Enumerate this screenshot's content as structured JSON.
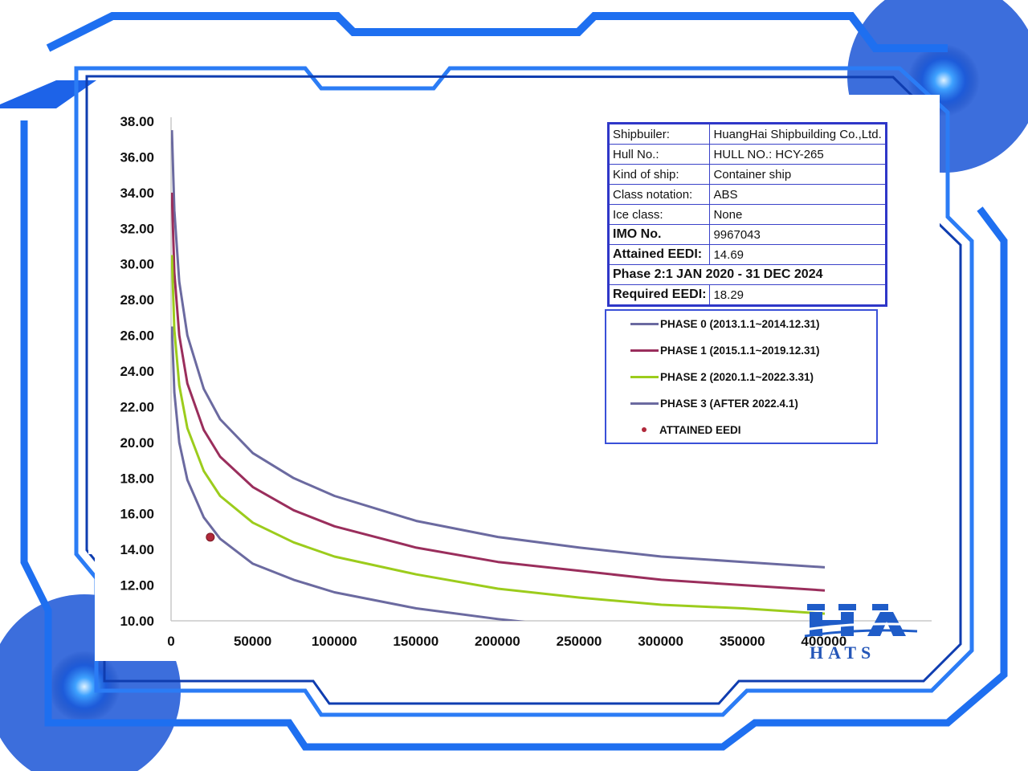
{
  "info": {
    "rows": [
      {
        "label": "Shipbuiler:",
        "value": "HuangHai Shipbuilding Co.,Ltd."
      },
      {
        "label": "Hull No.:",
        "value": "HULL NO.: HCY-265"
      },
      {
        "label": "Kind of ship:",
        "value": "Container ship"
      },
      {
        "label": "Class notation:",
        "value": "ABS"
      },
      {
        "label": "Ice class:",
        "value": "None"
      }
    ],
    "imo_label": "IMO No.",
    "imo_value": "9967043",
    "attained_label": "Attained EEDI:",
    "attained_value": "14.69",
    "phase_text": "Phase 2:1 JAN 2020 - 31 DEC 2024",
    "required_label": "Required EEDI:",
    "required_value": "18.29"
  },
  "logo": {
    "text": "HATS"
  },
  "colors": {
    "phase0": "#6b6aa0",
    "phase1": "#9a2e5c",
    "phase2": "#9ccc1c",
    "phase3": "#6b6aa0",
    "attained": "#b0283a",
    "frame": "#1e6ff0"
  },
  "chart_data": {
    "type": "line",
    "xlim": [
      0,
      400000
    ],
    "ylim": [
      10,
      38
    ],
    "x_ticks": [
      0,
      50000,
      100000,
      150000,
      200000,
      250000,
      300000,
      350000,
      400000
    ],
    "x_tick_labels": [
      "0",
      "50000",
      "100000",
      "150000",
      "200000",
      "250000",
      "300000",
      "350000",
      "400000"
    ],
    "y_ticks": [
      10,
      12,
      14,
      16,
      18,
      20,
      22,
      24,
      26,
      28,
      30,
      32,
      34,
      36,
      38
    ],
    "y_tick_labels": [
      "10.00",
      "12.00",
      "14.00",
      "16.00",
      "18.00",
      "20.00",
      "22.00",
      "24.00",
      "26.00",
      "28.00",
      "30.00",
      "32.00",
      "34.00",
      "36.00",
      "38.00"
    ],
    "series": [
      {
        "name": "PHASE 0 (2013.1.1~2014.12.31)",
        "x": [
          500,
          2000,
          5000,
          10000,
          20000,
          30000,
          50000,
          75000,
          100000,
          150000,
          200000,
          250000,
          300000,
          350000,
          400000
        ],
        "y": [
          37.5,
          33.0,
          29.0,
          26.0,
          23.0,
          21.3,
          19.4,
          18.0,
          17.0,
          15.6,
          14.7,
          14.1,
          13.6,
          13.3,
          13.0
        ]
      },
      {
        "name": "PHASE 1 (2015.1.1~2019.12.31)",
        "x": [
          500,
          2000,
          5000,
          10000,
          20000,
          30000,
          50000,
          75000,
          100000,
          150000,
          200000,
          250000,
          300000,
          350000,
          400000
        ],
        "y": [
          34.0,
          29.5,
          26.0,
          23.3,
          20.7,
          19.2,
          17.5,
          16.2,
          15.3,
          14.1,
          13.3,
          12.8,
          12.3,
          12.0,
          11.7
        ]
      },
      {
        "name": "PHASE 2 (2020.1.1~2022.3.31)",
        "x": [
          500,
          2000,
          5000,
          10000,
          20000,
          30000,
          50000,
          75000,
          100000,
          150000,
          200000,
          250000,
          300000,
          350000,
          400000
        ],
        "y": [
          30.5,
          26.3,
          23.2,
          20.8,
          18.4,
          17.0,
          15.5,
          14.4,
          13.6,
          12.6,
          11.8,
          11.3,
          10.9,
          10.7,
          10.4
        ]
      },
      {
        "name": "PHASE 3 (AFTER 2022.4.1)",
        "x": [
          500,
          2000,
          5000,
          10000,
          20000,
          30000,
          50000,
          75000,
          100000,
          150000,
          200000,
          250000,
          300000,
          350000,
          400000
        ],
        "y": [
          26.5,
          22.8,
          20.0,
          17.9,
          15.8,
          14.6,
          13.2,
          12.3,
          11.6,
          10.7,
          10.1,
          9.6,
          9.2,
          9.0,
          8.8
        ]
      }
    ],
    "points": [
      {
        "name": "ATTAINED EEDI",
        "x": 24000,
        "y": 14.69
      }
    ],
    "legend": "right"
  }
}
